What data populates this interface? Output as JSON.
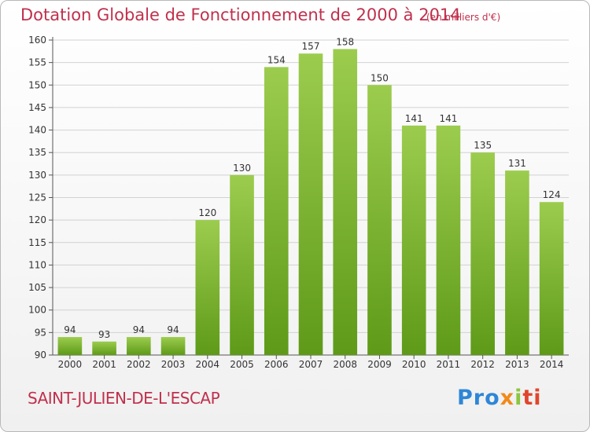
{
  "header": {
    "title": "Dotation Globale de Fonctionnement de 2000 à 2014",
    "unit": "(en milliers d'€)"
  },
  "footer": {
    "commune": "SAINT-JULIEN-DE-L'ESCAP",
    "logo_parts": [
      "Pro",
      "x",
      "i",
      "ti"
    ]
  },
  "chart_data": {
    "type": "bar",
    "title": "Dotation Globale de Fonctionnement de 2000 à 2014",
    "subtitle": "(en milliers d'€)",
    "categories": [
      "2000",
      "2001",
      "2002",
      "2003",
      "2004",
      "2005",
      "2006",
      "2007",
      "2008",
      "2009",
      "2010",
      "2011",
      "2012",
      "2013",
      "2014"
    ],
    "values": [
      94,
      93,
      94,
      94,
      120,
      130,
      154,
      157,
      158,
      150,
      141,
      141,
      135,
      131,
      124
    ],
    "ylim": [
      90,
      160
    ],
    "yticks": [
      90,
      95,
      100,
      105,
      110,
      115,
      120,
      125,
      130,
      135,
      140,
      145,
      150,
      155,
      160
    ],
    "grid": true,
    "bar_color_top": "#9ccc4e",
    "bar_color_bottom": "#5e9a18",
    "xlabel": "",
    "ylabel": ""
  }
}
